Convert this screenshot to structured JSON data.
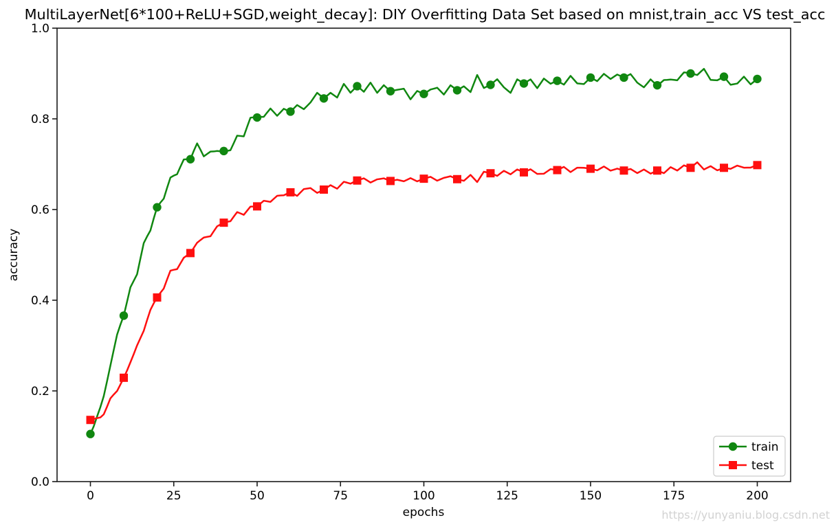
{
  "figure": {
    "watermark": "https://yunyaniu.blog.csdn.net"
  },
  "chart_data": {
    "type": "line",
    "title": "MultiLayerNet[6*100+ReLU+SGD,weight_decay]: DIY Overfitting Data Set based on mnist,train_acc VS test_acc",
    "xlabel": "epochs",
    "ylabel": "accuracy",
    "xlim": [
      -10,
      210
    ],
    "ylim": [
      0,
      1
    ],
    "xticks": [
      0,
      25,
      50,
      75,
      100,
      125,
      150,
      175,
      200
    ],
    "yticks": [
      "0.0",
      "0.2",
      "0.4",
      "0.6",
      "0.8",
      "1.0"
    ],
    "grid": false,
    "legend": {
      "position": "lower right"
    },
    "marker_every": 10,
    "x_markers": [
      0,
      10,
      20,
      30,
      40,
      50,
      60,
      70,
      80,
      90,
      100,
      110,
      120,
      130,
      140,
      150,
      160,
      170,
      180,
      190,
      200
    ],
    "series": [
      {
        "name": "train",
        "color": "#108710",
        "marker": "circle",
        "values": [
          0.105,
          0.366,
          0.605,
          0.711,
          0.729,
          0.803,
          0.816,
          0.845,
          0.872,
          0.861,
          0.855,
          0.863,
          0.875,
          0.878,
          0.884,
          0.891,
          0.891,
          0.874,
          0.9,
          0.893,
          0.888
        ]
      },
      {
        "name": "test",
        "color": "#ff0f0f",
        "marker": "square",
        "values": [
          0.136,
          0.229,
          0.406,
          0.504,
          0.571,
          0.607,
          0.638,
          0.644,
          0.664,
          0.663,
          0.668,
          0.667,
          0.68,
          0.682,
          0.687,
          0.69,
          0.686,
          0.686,
          0.692,
          0.692,
          0.698
        ]
      }
    ],
    "line_noise": {
      "train": 0.011,
      "test": 0.0058
    }
  }
}
